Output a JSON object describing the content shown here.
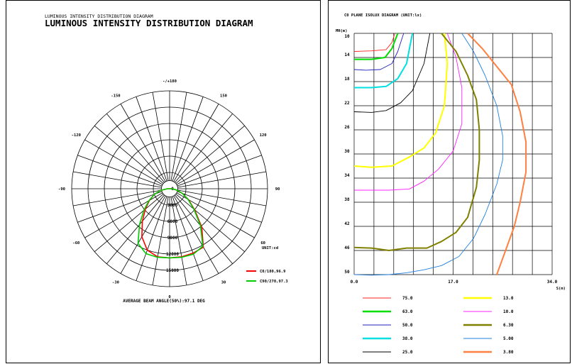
{
  "left_panel": {
    "title_small": "LUMINOUS INTENSITY DISTRIBUTION DIAGRAM",
    "title": "LUMINOUS INTENSITY DISTRIBUTION DIAGRAM",
    "footer": "AVERAGE BEAM ANGLE(50%):97.1 DEG"
  },
  "right_panel": {
    "title": "C0 PLANE ISOLUX DIAGRAM (UNIT:lx)"
  },
  "chart_data": [
    {
      "type": "line",
      "subtype": "polar",
      "title": "LUMINOUS INTENSITY DISTRIBUTION DIAGRAM",
      "unit_label": "UNIT:cd",
      "angle_labels": [
        "-/+180",
        "150",
        "120",
        "90",
        "60",
        "30",
        "0",
        "-30",
        "-60",
        "-90",
        "-120",
        "-150"
      ],
      "radial_ticks": [
        0,
        3000,
        6000,
        9000,
        12000,
        15000
      ],
      "radial_max": 18000,
      "grid": true,
      "legend_position": "bottom-right",
      "series": [
        {
          "name": "C0/180,96.9",
          "color": "#ff0000",
          "angles": [
            -180,
            -150,
            -120,
            -95,
            -90,
            -80,
            -70,
            -60,
            -50,
            -40,
            -30,
            -20,
            -10,
            0,
            10,
            20,
            30,
            40,
            50,
            60,
            70,
            80,
            90,
            95,
            120,
            150,
            180
          ],
          "values": [
            0,
            0,
            0,
            0,
            400,
            1700,
            3000,
            4300,
            5800,
            7800,
            10200,
            12000,
            12700,
            12700,
            12700,
            12600,
            12400,
            9200,
            6000,
            4000,
            2500,
            1200,
            300,
            0,
            0,
            0,
            0
          ]
        },
        {
          "name": "C90/270,97.3",
          "color": "#00cc00",
          "angles": [
            -180,
            -150,
            -120,
            -95,
            -90,
            -80,
            -70,
            -60,
            -50,
            -40,
            -30,
            -20,
            -10,
            0,
            10,
            20,
            30,
            40,
            50,
            60,
            70,
            80,
            90,
            95,
            120,
            150,
            180
          ],
          "values": [
            0,
            0,
            0,
            0,
            400,
            1600,
            3000,
            4400,
            6200,
            8600,
            11600,
            12700,
            12800,
            12700,
            12800,
            12800,
            12200,
            8800,
            5800,
            3900,
            2500,
            1300,
            300,
            0,
            0,
            0,
            0
          ]
        }
      ]
    },
    {
      "type": "line",
      "subtype": "isolux",
      "title": "C0 PLANE ISOLUX DIAGRAM (UNIT:lx)",
      "xlabel": "S(m)",
      "ylabel": "MH(m)",
      "xlim": [
        0,
        34
      ],
      "ylim": [
        10,
        50
      ],
      "x_tick_labels": [
        "0.0",
        "17.0",
        "34.0"
      ],
      "x_tick_values": [
        0,
        17,
        34
      ],
      "y_tick_labels": [
        "10",
        "14",
        "18",
        "22",
        "26",
        "30",
        "34",
        "38",
        "42",
        "46",
        "50"
      ],
      "y_tick_values": [
        10,
        14,
        18,
        22,
        26,
        30,
        34,
        38,
        42,
        46,
        50
      ],
      "grid": true,
      "legend_position": "bottom",
      "series": [
        {
          "name": "75.0",
          "color": "#ff2020",
          "x": [
            0,
            3,
            5.5,
            6.5,
            7
          ],
          "y": [
            13.0,
            12.9,
            12.7,
            11.5,
            10
          ]
        },
        {
          "name": "63.0",
          "color": "#00dd00",
          "x": [
            0,
            3,
            5.3,
            6.5,
            7.5
          ],
          "y": [
            14.3,
            14.3,
            14.0,
            12.5,
            10
          ]
        },
        {
          "name": "50.0",
          "color": "#2020c0",
          "x": [
            0,
            2,
            4.5,
            6.5,
            7.5,
            8.5
          ],
          "y": [
            16.0,
            16.1,
            16.0,
            15.0,
            13.0,
            10
          ]
        },
        {
          "name": "38.0",
          "color": "#00e0e0",
          "x": [
            0,
            3,
            5.5,
            7.5,
            9,
            10
          ],
          "y": [
            19.0,
            19.0,
            18.8,
            17.5,
            15,
            10
          ]
        },
        {
          "name": "25.0",
          "color": "#000000",
          "x": [
            0,
            3,
            5.5,
            8,
            10,
            12,
            13
          ],
          "y": [
            23.0,
            23.1,
            22.8,
            21.5,
            19.5,
            15,
            10
          ]
        },
        {
          "name": "13.0",
          "color": "#ffff00",
          "x": [
            0,
            3,
            6.5,
            9.5,
            12,
            14,
            15.5,
            16,
            15.5
          ],
          "y": [
            32.0,
            32.2,
            32.0,
            30.5,
            29.0,
            26.5,
            22.0,
            15.0,
            10
          ]
        },
        {
          "name": "10.0",
          "color": "#ff20ff",
          "x": [
            0,
            3,
            6,
            9.5,
            12,
            14.5,
            17,
            18.5,
            18.5,
            17.5,
            16
          ],
          "y": [
            36.0,
            36.0,
            36.0,
            35.8,
            34.5,
            32.5,
            29.5,
            25.0,
            19.0,
            14.0,
            10
          ]
        },
        {
          "name": "6.30",
          "color": "#808000",
          "x": [
            0,
            3,
            6,
            9,
            12.5,
            15,
            17.5,
            19.5,
            21,
            21.5,
            21.5,
            21,
            19.5,
            17.5,
            15
          ],
          "y": [
            45.5,
            45.6,
            46.0,
            45.6,
            45.6,
            44.5,
            43.0,
            40.5,
            35.5,
            31.0,
            26.0,
            21.0,
            17.0,
            13.0,
            10
          ]
        },
        {
          "name": "5.00",
          "color": "#2080e0",
          "x": [
            0,
            3,
            6,
            9,
            12,
            15,
            18,
            20.5,
            22.5,
            24.5,
            25.5,
            25.5,
            24.5,
            22.5,
            20.5,
            18.5
          ],
          "y": [
            50.0,
            50.1,
            50.0,
            49.7,
            49.2,
            48.5,
            47.0,
            44.0,
            40.0,
            35.0,
            31.0,
            27.0,
            22.0,
            17.0,
            13.0,
            10
          ]
        },
        {
          "name": "3.80",
          "color": "#ff8040",
          "x": [
            24.5,
            26,
            27.5,
            28.5,
            29.5,
            29.5,
            28.5,
            27,
            24.5,
            22,
            19.5
          ],
          "y": [
            50,
            46.0,
            42.0,
            38.0,
            33.0,
            28.0,
            23.0,
            18.5,
            15.5,
            12.5,
            10
          ]
        }
      ]
    }
  ]
}
